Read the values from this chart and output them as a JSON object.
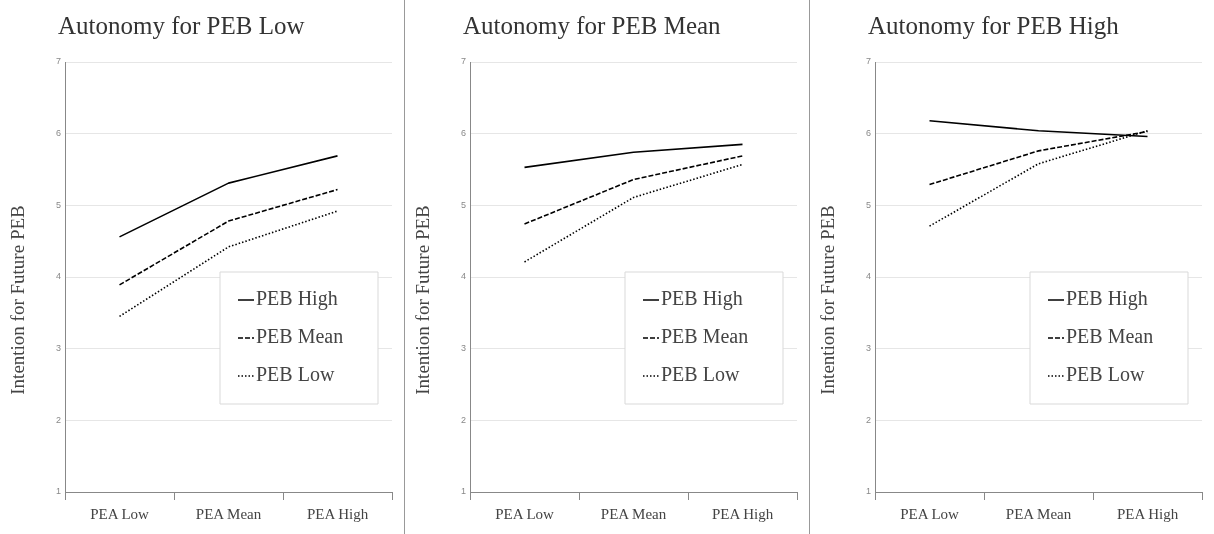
{
  "chart_data": [
    {
      "type": "line",
      "title": "Autonomy for PEB Low",
      "ylabel": "Intention for Future PEB",
      "categories": [
        "PEA Low",
        "PEA Mean",
        "PEA High"
      ],
      "ylim": [
        1,
        7
      ],
      "yticks": [
        1,
        2,
        3,
        4,
        5,
        6,
        7
      ],
      "grid": "y",
      "legend": "bottom right",
      "marker": "none",
      "series": [
        {
          "name": "PEB High",
          "color": "#000000",
          "line_style": "solid",
          "values": [
            4.56,
            5.31,
            5.69
          ]
        },
        {
          "name": "PEB Mean",
          "color": "#000000",
          "line_style": "dashed",
          "values": [
            3.89,
            4.78,
            5.22
          ]
        },
        {
          "name": "PEB Low",
          "color": "#000000",
          "line_style": "dotted",
          "values": [
            3.45,
            4.42,
            4.92
          ]
        }
      ]
    },
    {
      "type": "line",
      "title": "Autonomy for PEB Mean",
      "ylabel": "Intention for Future PEB",
      "categories": [
        "PEA Low",
        "PEA Mean",
        "PEA High"
      ],
      "ylim": [
        1,
        7
      ],
      "yticks": [
        1,
        2,
        3,
        4,
        5,
        6,
        7
      ],
      "grid": "y",
      "legend": "bottom right",
      "marker": "none",
      "series": [
        {
          "name": "PEB High",
          "color": "#000000",
          "line_style": "solid",
          "values": [
            5.53,
            5.74,
            5.85
          ]
        },
        {
          "name": "PEB Mean",
          "color": "#000000",
          "line_style": "dashed",
          "values": [
            4.74,
            5.36,
            5.69
          ]
        },
        {
          "name": "PEB Low",
          "color": "#000000",
          "line_style": "dotted",
          "values": [
            4.21,
            5.11,
            5.57
          ]
        }
      ]
    },
    {
      "type": "line",
      "title": "Autonomy for PEB High",
      "ylabel": "Intention for Future PEB",
      "categories": [
        "PEA Low",
        "PEA Mean",
        "PEA High"
      ],
      "ylim": [
        1,
        7
      ],
      "yticks": [
        1,
        2,
        3,
        4,
        5,
        6,
        7
      ],
      "grid": "y",
      "legend": "bottom right",
      "marker": "none",
      "series": [
        {
          "name": "PEB High",
          "color": "#000000",
          "line_style": "solid",
          "values": [
            6.18,
            6.04,
            5.96
          ]
        },
        {
          "name": "PEB Mean",
          "color": "#000000",
          "line_style": "dashed",
          "values": [
            5.29,
            5.76,
            6.03
          ]
        },
        {
          "name": "PEB Low",
          "color": "#000000",
          "line_style": "dotted",
          "values": [
            4.71,
            5.58,
            6.04
          ]
        }
      ]
    }
  ]
}
